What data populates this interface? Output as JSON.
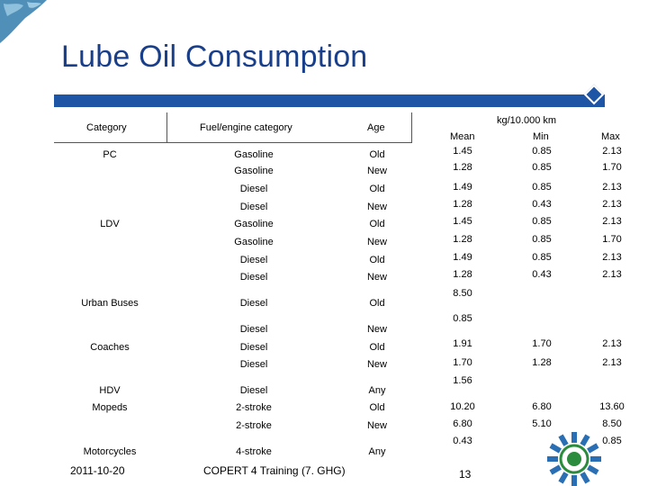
{
  "slide": {
    "title": "Lube Oil Consumption",
    "accent_color": "#1f55a5",
    "title_color": "#1a3f8a"
  },
  "table": {
    "headers": {
      "category": "Category",
      "fuel": "Fuel/engine category",
      "age": "Age",
      "group": "kg/10.000 km",
      "mean": "Mean",
      "min": "Min",
      "max": "Max"
    },
    "rows": [
      {
        "category": "PC",
        "fuel": "Gasoline",
        "age": "Old",
        "mean": "1.45",
        "min": "0.85",
        "max": "2.13"
      },
      {
        "category": "",
        "fuel": "Gasoline",
        "age": "New",
        "mean": "1.28",
        "min": "0.85",
        "max": "1.70"
      },
      {
        "category": "",
        "fuel": "Diesel",
        "age": "Old",
        "mean": "1.49",
        "min": "0.85",
        "max": "2.13"
      },
      {
        "category": "",
        "fuel": "Diesel",
        "age": "New",
        "mean": "1.28",
        "min": "0.43",
        "max": "2.13"
      },
      {
        "category": "LDV",
        "fuel": "Gasoline",
        "age": "Old",
        "mean": "1.45",
        "min": "0.85",
        "max": "2.13"
      },
      {
        "category": "",
        "fuel": "Gasoline",
        "age": "New",
        "mean": "1.28",
        "min": "0.85",
        "max": "1.70"
      },
      {
        "category": "",
        "fuel": "Diesel",
        "age": "Old",
        "mean": "1.49",
        "min": "0.85",
        "max": "2.13"
      },
      {
        "category": "",
        "fuel": "Diesel",
        "age": "New",
        "mean": "1.28",
        "min": "0.43",
        "max": "2.13"
      },
      {
        "category": "Urban Buses",
        "fuel": "Diesel",
        "age": "Old",
        "mean": "8.50",
        "min": "",
        "max": ""
      },
      {
        "category": "",
        "fuel": "Diesel",
        "age": "New",
        "mean": "0.85",
        "min": "",
        "max": ""
      },
      {
        "category": "Coaches",
        "fuel": "Diesel",
        "age": "Old",
        "mean": "1.91",
        "min": "1.70",
        "max": "2.13"
      },
      {
        "category": "",
        "fuel": "Diesel",
        "age": "New",
        "mean": "1.70",
        "min": "1.28",
        "max": "2.13"
      },
      {
        "category": "HDV",
        "fuel": "Diesel",
        "age": "Any",
        "mean": "1.56",
        "min": "",
        "max": ""
      },
      {
        "category": "Mopeds",
        "fuel": "2-stroke",
        "age": "Old",
        "mean": "10.20",
        "min": "6.80",
        "max": "13.60"
      },
      {
        "category": "",
        "fuel": "2-stroke",
        "age": "New",
        "mean": "6.80",
        "min": "5.10",
        "max": "8.50"
      },
      {
        "category": "Motorcycles",
        "fuel": "4-stroke",
        "age": "Any",
        "mean": "0.43",
        "min": "",
        "max": "0.85"
      }
    ]
  },
  "footer": {
    "date": "2011-10-20",
    "course": "COPERT 4 Training (7. GHG)",
    "page": "13"
  }
}
